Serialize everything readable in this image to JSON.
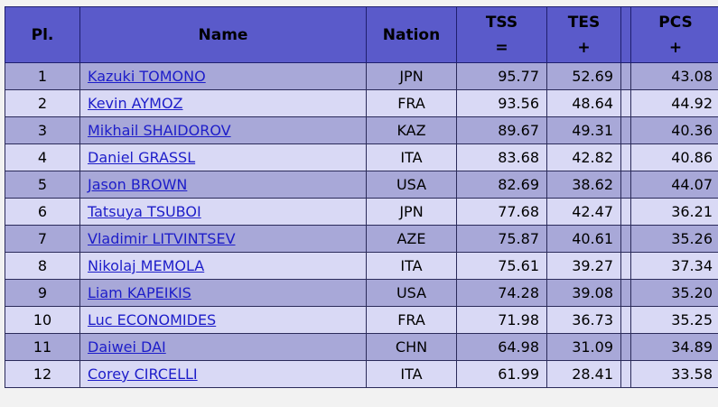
{
  "table": {
    "headers": {
      "place": "Pl.",
      "name": "Name",
      "nation": "Nation",
      "tss": {
        "top": "TSS",
        "bottom": "="
      },
      "tes": {
        "top": "TES",
        "bottom": "+"
      },
      "pcs": {
        "top": "PCS",
        "bottom": "+"
      }
    },
    "rows": [
      {
        "place": "1",
        "name": "Kazuki TOMONO",
        "nation": "JPN",
        "tss": "95.77",
        "tes": "52.69",
        "pcs": "43.08"
      },
      {
        "place": "2",
        "name": "Kevin AYMOZ",
        "nation": "FRA",
        "tss": "93.56",
        "tes": "48.64",
        "pcs": "44.92"
      },
      {
        "place": "3",
        "name": "Mikhail SHAIDOROV",
        "nation": "KAZ",
        "tss": "89.67",
        "tes": "49.31",
        "pcs": "40.36"
      },
      {
        "place": "4",
        "name": "Daniel GRASSL",
        "nation": "ITA",
        "tss": "83.68",
        "tes": "42.82",
        "pcs": "40.86"
      },
      {
        "place": "5",
        "name": "Jason BROWN",
        "nation": "USA",
        "tss": "82.69",
        "tes": "38.62",
        "pcs": "44.07"
      },
      {
        "place": "6",
        "name": "Tatsuya TSUBOI",
        "nation": "JPN",
        "tss": "77.68",
        "tes": "42.47",
        "pcs": "36.21"
      },
      {
        "place": "7",
        "name": "Vladimir LITVINTSEV",
        "nation": "AZE",
        "tss": "75.87",
        "tes": "40.61",
        "pcs": "35.26"
      },
      {
        "place": "8",
        "name": "Nikolaj MEMOLA",
        "nation": "ITA",
        "tss": "75.61",
        "tes": "39.27",
        "pcs": "37.34"
      },
      {
        "place": "9",
        "name": "Liam KAPEIKIS",
        "nation": "USA",
        "tss": "74.28",
        "tes": "39.08",
        "pcs": "35.20"
      },
      {
        "place": "10",
        "name": "Luc ECONOMIDES",
        "nation": "FRA",
        "tss": "71.98",
        "tes": "36.73",
        "pcs": "35.25"
      },
      {
        "place": "11",
        "name": "Daiwei DAI",
        "nation": "CHN",
        "tss": "64.98",
        "tes": "31.09",
        "pcs": "34.89"
      },
      {
        "place": "12",
        "name": "Corey CIRCELLI",
        "nation": "ITA",
        "tss": "61.99",
        "tes": "28.41",
        "pcs": "33.58"
      }
    ]
  },
  "colors": {
    "header_bg": "#5a5aca",
    "row_odd_bg": "#a8a8d8",
    "row_even_bg": "#d9d9f5",
    "link": "#1d1dc9"
  }
}
